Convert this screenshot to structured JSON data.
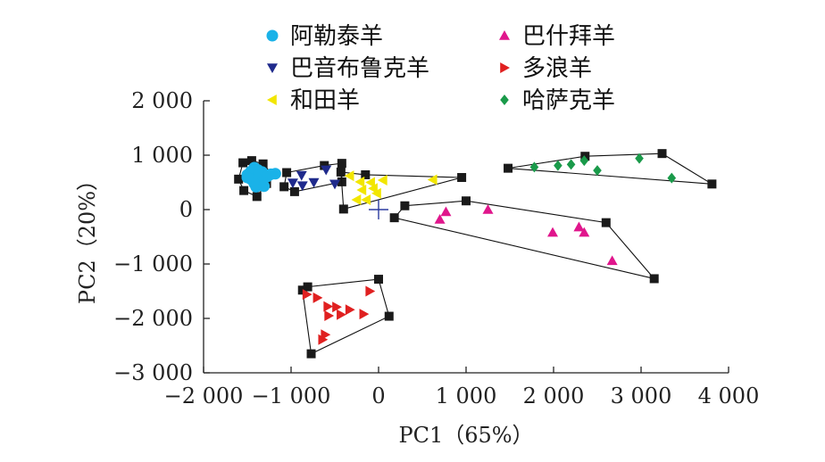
{
  "chart_data": {
    "type": "scatter",
    "xlabel": "PC1（65%）",
    "ylabel": "PC2（20%）",
    "xlim": [
      -2000,
      4000
    ],
    "ylim": [
      -3000,
      2000
    ],
    "x_ticks": [
      -2000,
      -1000,
      0,
      1000,
      2000,
      3000,
      4000
    ],
    "y_ticks": [
      -3000,
      -2000,
      -1000,
      0,
      1000,
      2000
    ],
    "x_tick_labels": [
      "−2 000",
      "−1 000",
      "0",
      "1 000",
      "2 000",
      "3 000",
      "4 000"
    ],
    "y_tick_labels": [
      "−3 000",
      "−2 000",
      "−1 000",
      "0",
      "1 000",
      "2 000"
    ],
    "origin_marker": [
      0,
      0
    ],
    "legend_position": "top",
    "grid": false,
    "series": [
      {
        "name": "阿勒泰羊",
        "marker": "circle",
        "color": "#1ab2e8",
        "points": [
          [
            -1420,
            770
          ],
          [
            -1380,
            730
          ],
          [
            -1460,
            700
          ],
          [
            -1500,
            640
          ],
          [
            -1370,
            640
          ],
          [
            -1330,
            690
          ],
          [
            -1270,
            610
          ],
          [
            -1460,
            560
          ],
          [
            -1390,
            560
          ],
          [
            -1330,
            510
          ],
          [
            -1420,
            480
          ],
          [
            -1500,
            590
          ],
          [
            -1230,
            650
          ],
          [
            -1180,
            660
          ],
          [
            -1400,
            420
          ],
          [
            -1310,
            430
          ]
        ],
        "hull": [
          [
            -1550,
            860
          ],
          [
            -1450,
            900
          ],
          [
            -1320,
            840
          ],
          [
            -1210,
            640
          ],
          [
            -1280,
            480
          ],
          [
            -1390,
            240
          ],
          [
            -1540,
            350
          ],
          [
            -1600,
            560
          ]
        ]
      },
      {
        "name": "巴什拜羊",
        "marker": "triangle-up",
        "color": "#e0168c",
        "points": [
          [
            770,
            -40
          ],
          [
            700,
            -180
          ],
          [
            1250,
            0
          ],
          [
            1990,
            -420
          ],
          [
            2290,
            -320
          ],
          [
            2350,
            -420
          ],
          [
            2670,
            -940
          ]
        ],
        "hull": [
          [
            300,
            70
          ],
          [
            1000,
            160
          ],
          [
            2600,
            -240
          ],
          [
            3150,
            -1270
          ],
          [
            180,
            -150
          ]
        ]
      },
      {
        "name": "巴音布鲁克羊",
        "marker": "triangle-down",
        "color": "#1f2a8c",
        "points": [
          [
            -880,
            630
          ],
          [
            -600,
            730
          ],
          [
            -980,
            490
          ],
          [
            -870,
            440
          ],
          [
            -740,
            500
          ],
          [
            -500,
            470
          ]
        ],
        "hull": [
          [
            -1050,
            680
          ],
          [
            -620,
            810
          ],
          [
            -420,
            850
          ],
          [
            -420,
            510
          ],
          [
            -960,
            330
          ],
          [
            -1080,
            420
          ]
        ]
      },
      {
        "name": "多浪羊",
        "marker": "triangle-right",
        "color": "#e02020",
        "points": [
          [
            -820,
            -1560
          ],
          [
            -700,
            -1620
          ],
          [
            -100,
            -1500
          ],
          [
            -580,
            -1780
          ],
          [
            -480,
            -1790
          ],
          [
            -330,
            -1840
          ],
          [
            -570,
            -1950
          ],
          [
            -430,
            -1930
          ],
          [
            -170,
            -1920
          ],
          [
            -610,
            -2300
          ],
          [
            -640,
            -2390
          ]
        ],
        "hull": [
          [
            -810,
            -1420
          ],
          [
            0,
            -1280
          ],
          [
            120,
            -1960
          ],
          [
            -770,
            -2650
          ],
          [
            -870,
            -1480
          ]
        ]
      },
      {
        "name": "和田羊",
        "marker": "triangle-left",
        "color": "#f2e600",
        "points": [
          [
            -330,
            620
          ],
          [
            -210,
            510
          ],
          [
            -190,
            360
          ],
          [
            -90,
            500
          ],
          [
            50,
            540
          ],
          [
            620,
            550
          ],
          [
            -60,
            390
          ],
          [
            -20,
            300
          ],
          [
            -250,
            180
          ],
          [
            -140,
            180
          ]
        ],
        "hull": [
          [
            -430,
            690
          ],
          [
            -150,
            640
          ],
          [
            950,
            590
          ],
          [
            -400,
            10
          ]
        ]
      },
      {
        "name": "哈萨克羊",
        "marker": "diamond",
        "color": "#1a9a4a",
        "points": [
          [
            1780,
            780
          ],
          [
            2050,
            810
          ],
          [
            2200,
            830
          ],
          [
            2350,
            900
          ],
          [
            2500,
            720
          ],
          [
            2980,
            940
          ],
          [
            3350,
            580
          ]
        ],
        "hull": [
          [
            1480,
            760
          ],
          [
            2360,
            980
          ],
          [
            3240,
            1030
          ],
          [
            3810,
            470
          ]
        ]
      }
    ]
  }
}
